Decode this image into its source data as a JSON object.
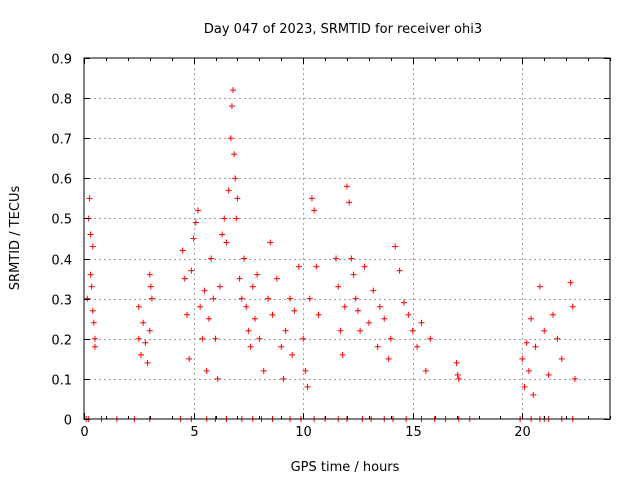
{
  "chart_data": {
    "type": "scatter",
    "title": "Day 047 of 2023, SRMTID for receiver ohi3",
    "xlabel": "GPS time / hours",
    "ylabel": "SRMTID / TECUs",
    "xlim": [
      0,
      24
    ],
    "ylim": [
      0,
      0.9
    ],
    "grid": true,
    "marker": "+",
    "color": "#ff0000",
    "x_ticks": [
      0,
      5,
      10,
      15,
      20
    ],
    "x_tick_labels": [
      "0",
      "5",
      "10",
      "15",
      "20"
    ],
    "y_ticks": [
      0,
      0.1,
      0.2,
      0.3,
      0.4,
      0.5,
      0.6,
      0.7,
      0.8,
      0.9
    ],
    "y_tick_labels": [
      "0",
      "0.1",
      "0.2",
      "0.3",
      "0.4",
      "0.5",
      "0.6",
      "0.7",
      "0.8",
      "0.9"
    ],
    "series": [
      {
        "name": "SRMTID",
        "points": [
          [
            0.15,
            0.3
          ],
          [
            0.2,
            0.5
          ],
          [
            0.25,
            0.55
          ],
          [
            0.3,
            0.46
          ],
          [
            0.3,
            0.36
          ],
          [
            0.35,
            0.33
          ],
          [
            0.4,
            0.43
          ],
          [
            0.4,
            0.27
          ],
          [
            0.45,
            0.24
          ],
          [
            0.5,
            0.2
          ],
          [
            0.5,
            0.18
          ],
          [
            2.5,
            0.28
          ],
          [
            2.5,
            0.2
          ],
          [
            2.6,
            0.16
          ],
          [
            2.7,
            0.24
          ],
          [
            2.8,
            0.19
          ],
          [
            2.9,
            0.14
          ],
          [
            3.0,
            0.22
          ],
          [
            3.0,
            0.36
          ],
          [
            3.05,
            0.33
          ],
          [
            3.1,
            0.3
          ],
          [
            4.5,
            0.42
          ],
          [
            4.6,
            0.35
          ],
          [
            4.7,
            0.26
          ],
          [
            4.8,
            0.15
          ],
          [
            4.9,
            0.37
          ],
          [
            5.0,
            0.45
          ],
          [
            5.1,
            0.49
          ],
          [
            5.2,
            0.52
          ],
          [
            5.3,
            0.28
          ],
          [
            5.4,
            0.2
          ],
          [
            5.5,
            0.32
          ],
          [
            5.6,
            0.12
          ],
          [
            5.7,
            0.25
          ],
          [
            5.8,
            0.4
          ],
          [
            5.9,
            0.3
          ],
          [
            6.0,
            0.2
          ],
          [
            6.1,
            0.1
          ],
          [
            6.2,
            0.33
          ],
          [
            6.3,
            0.46
          ],
          [
            6.4,
            0.5
          ],
          [
            6.5,
            0.44
          ],
          [
            6.6,
            0.57
          ],
          [
            6.7,
            0.7
          ],
          [
            6.75,
            0.78
          ],
          [
            6.8,
            0.82
          ],
          [
            6.85,
            0.66
          ],
          [
            6.9,
            0.6
          ],
          [
            6.95,
            0.5
          ],
          [
            7.0,
            0.55
          ],
          [
            7.1,
            0.35
          ],
          [
            7.2,
            0.3
          ],
          [
            7.3,
            0.4
          ],
          [
            7.4,
            0.28
          ],
          [
            7.5,
            0.22
          ],
          [
            7.6,
            0.18
          ],
          [
            7.7,
            0.33
          ],
          [
            7.8,
            0.25
          ],
          [
            7.9,
            0.36
          ],
          [
            8.0,
            0.2
          ],
          [
            8.2,
            0.12
          ],
          [
            8.4,
            0.3
          ],
          [
            8.5,
            0.44
          ],
          [
            8.6,
            0.26
          ],
          [
            8.8,
            0.35
          ],
          [
            9.0,
            0.18
          ],
          [
            9.1,
            0.1
          ],
          [
            9.2,
            0.22
          ],
          [
            9.4,
            0.3
          ],
          [
            9.5,
            0.16
          ],
          [
            9.6,
            0.27
          ],
          [
            9.8,
            0.38
          ],
          [
            10.0,
            0.2
          ],
          [
            10.1,
            0.12
          ],
          [
            10.2,
            0.08
          ],
          [
            10.3,
            0.3
          ],
          [
            10.4,
            0.55
          ],
          [
            10.5,
            0.52
          ],
          [
            10.6,
            0.38
          ],
          [
            10.7,
            0.26
          ],
          [
            11.5,
            0.4
          ],
          [
            11.6,
            0.33
          ],
          [
            11.7,
            0.22
          ],
          [
            11.8,
            0.16
          ],
          [
            11.9,
            0.28
          ],
          [
            12.0,
            0.58
          ],
          [
            12.1,
            0.54
          ],
          [
            12.2,
            0.4
          ],
          [
            12.3,
            0.36
          ],
          [
            12.4,
            0.3
          ],
          [
            12.5,
            0.27
          ],
          [
            12.6,
            0.22
          ],
          [
            12.8,
            0.38
          ],
          [
            13.0,
            0.24
          ],
          [
            13.2,
            0.32
          ],
          [
            13.4,
            0.18
          ],
          [
            13.5,
            0.28
          ],
          [
            13.7,
            0.25
          ],
          [
            13.9,
            0.15
          ],
          [
            14.0,
            0.2
          ],
          [
            14.2,
            0.43
          ],
          [
            14.4,
            0.37
          ],
          [
            14.6,
            0.29
          ],
          [
            14.8,
            0.26
          ],
          [
            15.0,
            0.22
          ],
          [
            15.2,
            0.18
          ],
          [
            15.4,
            0.24
          ],
          [
            15.6,
            0.12
          ],
          [
            15.8,
            0.2
          ],
          [
            17.0,
            0.14
          ],
          [
            17.05,
            0.11
          ],
          [
            17.1,
            0.1
          ],
          [
            20.0,
            0.15
          ],
          [
            20.1,
            0.08
          ],
          [
            20.2,
            0.19
          ],
          [
            20.3,
            0.12
          ],
          [
            20.4,
            0.25
          ],
          [
            20.5,
            0.06
          ],
          [
            20.6,
            0.18
          ],
          [
            20.8,
            0.33
          ],
          [
            21.0,
            0.22
          ],
          [
            21.2,
            0.11
          ],
          [
            21.4,
            0.26
          ],
          [
            21.6,
            0.2
          ],
          [
            21.8,
            0.15
          ],
          [
            22.2,
            0.34
          ],
          [
            22.3,
            0.28
          ],
          [
            22.4,
            0.1
          ],
          [
            0.1,
            0
          ],
          [
            0.2,
            0
          ],
          [
            0.8,
            0
          ],
          [
            1.5,
            0
          ],
          [
            2.3,
            0
          ],
          [
            3.0,
            0
          ],
          [
            4.4,
            0
          ],
          [
            4.9,
            0
          ],
          [
            5.6,
            0
          ],
          [
            6.0,
            0
          ],
          [
            6.5,
            0
          ],
          [
            7.2,
            0
          ],
          [
            7.7,
            0
          ],
          [
            8.1,
            0
          ],
          [
            8.6,
            0
          ],
          [
            9.4,
            0
          ],
          [
            9.9,
            0
          ],
          [
            10.5,
            0
          ],
          [
            11.0,
            0
          ],
          [
            11.6,
            0
          ],
          [
            12.0,
            0
          ],
          [
            12.7,
            0
          ],
          [
            13.1,
            0
          ],
          [
            13.7,
            0
          ],
          [
            14.1,
            0
          ],
          [
            14.7,
            0
          ],
          [
            15.4,
            0
          ],
          [
            16.0,
            0
          ],
          [
            16.5,
            0
          ],
          [
            17.1,
            0
          ],
          [
            17.6,
            0
          ],
          [
            19.9,
            0
          ],
          [
            20.4,
            0
          ],
          [
            20.8,
            0
          ],
          [
            21.0,
            0
          ],
          [
            21.2,
            0
          ],
          [
            21.8,
            0
          ],
          [
            22.3,
            0
          ]
        ]
      }
    ]
  }
}
